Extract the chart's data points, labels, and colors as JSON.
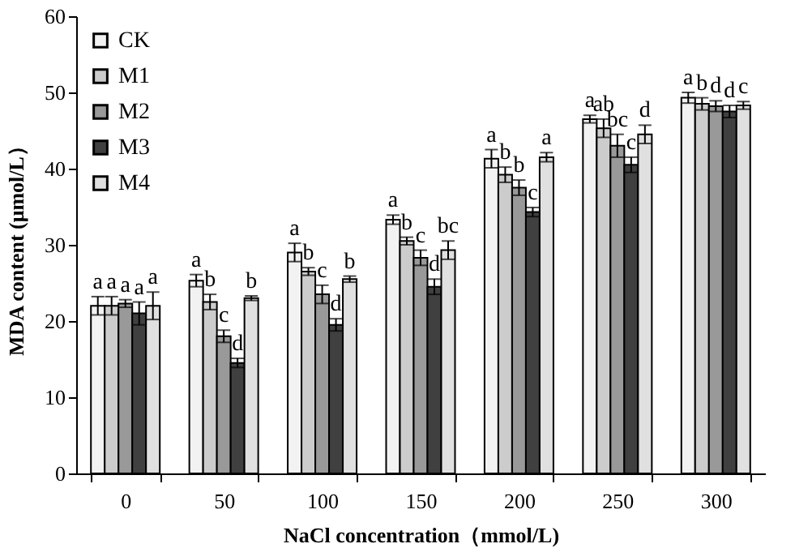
{
  "chart_data": {
    "type": "bar",
    "xlabel": "NaCl concentration（mmol/L)",
    "ylabel": "MDA content (μmol/L）",
    "categories": [
      "0",
      "50",
      "100",
      "150",
      "200",
      "250",
      "300"
    ],
    "series": [
      {
        "name": "CK",
        "color": "#f2f2f2",
        "values": [
          22,
          25.3,
          29,
          33.3,
          41.3,
          46.5,
          49.3
        ],
        "errors": [
          1.2,
          0.8,
          1.2,
          0.6,
          1.2,
          0.5,
          0.7
        ],
        "value_labels": [
          "a",
          "a",
          "a",
          "a",
          "a",
          "a",
          "a"
        ]
      },
      {
        "name": "M1",
        "color": "#cccccc",
        "values": [
          22,
          22.5,
          26.5,
          30.5,
          39.2,
          45.3,
          48.5
        ],
        "errors": [
          1.2,
          1,
          0.5,
          0.5,
          1,
          1.2,
          0.8
        ],
        "value_labels": [
          "a",
          "b",
          "b",
          "b",
          "b",
          "ab",
          "b"
        ]
      },
      {
        "name": "M2",
        "color": "#999999",
        "values": [
          22.3,
          18,
          23.5,
          28.3,
          37.5,
          43,
          48.2
        ],
        "errors": [
          0.5,
          0.8,
          1.2,
          1,
          1,
          1.5,
          0.7
        ],
        "value_labels": [
          "a",
          "c",
          "c",
          "c",
          "b",
          "bc",
          "d"
        ]
      },
      {
        "name": "M3",
        "color": "#404040",
        "values": [
          21,
          14.5,
          19.5,
          24.5,
          34.3,
          40.5,
          47.5
        ],
        "errors": [
          1.5,
          0.6,
          0.8,
          1,
          0.6,
          1,
          0.8
        ],
        "value_labels": [
          "a",
          "d",
          "d",
          "d",
          "c",
          "c",
          "d"
        ]
      },
      {
        "name": "M4",
        "color": "#e0e0e0",
        "values": [
          22,
          23,
          25.5,
          29.3,
          41.5,
          44.5,
          48.3
        ],
        "errors": [
          1.8,
          0.3,
          0.4,
          1.2,
          0.6,
          1.2,
          0.5
        ],
        "value_labels": [
          "a",
          "b",
          "b",
          "bc",
          "a",
          "d",
          "c"
        ]
      }
    ],
    "ylim": [
      0,
      60
    ],
    "yticks": [
      0,
      10,
      20,
      30,
      40,
      50,
      60
    ],
    "grid": false,
    "legend": "top left"
  }
}
